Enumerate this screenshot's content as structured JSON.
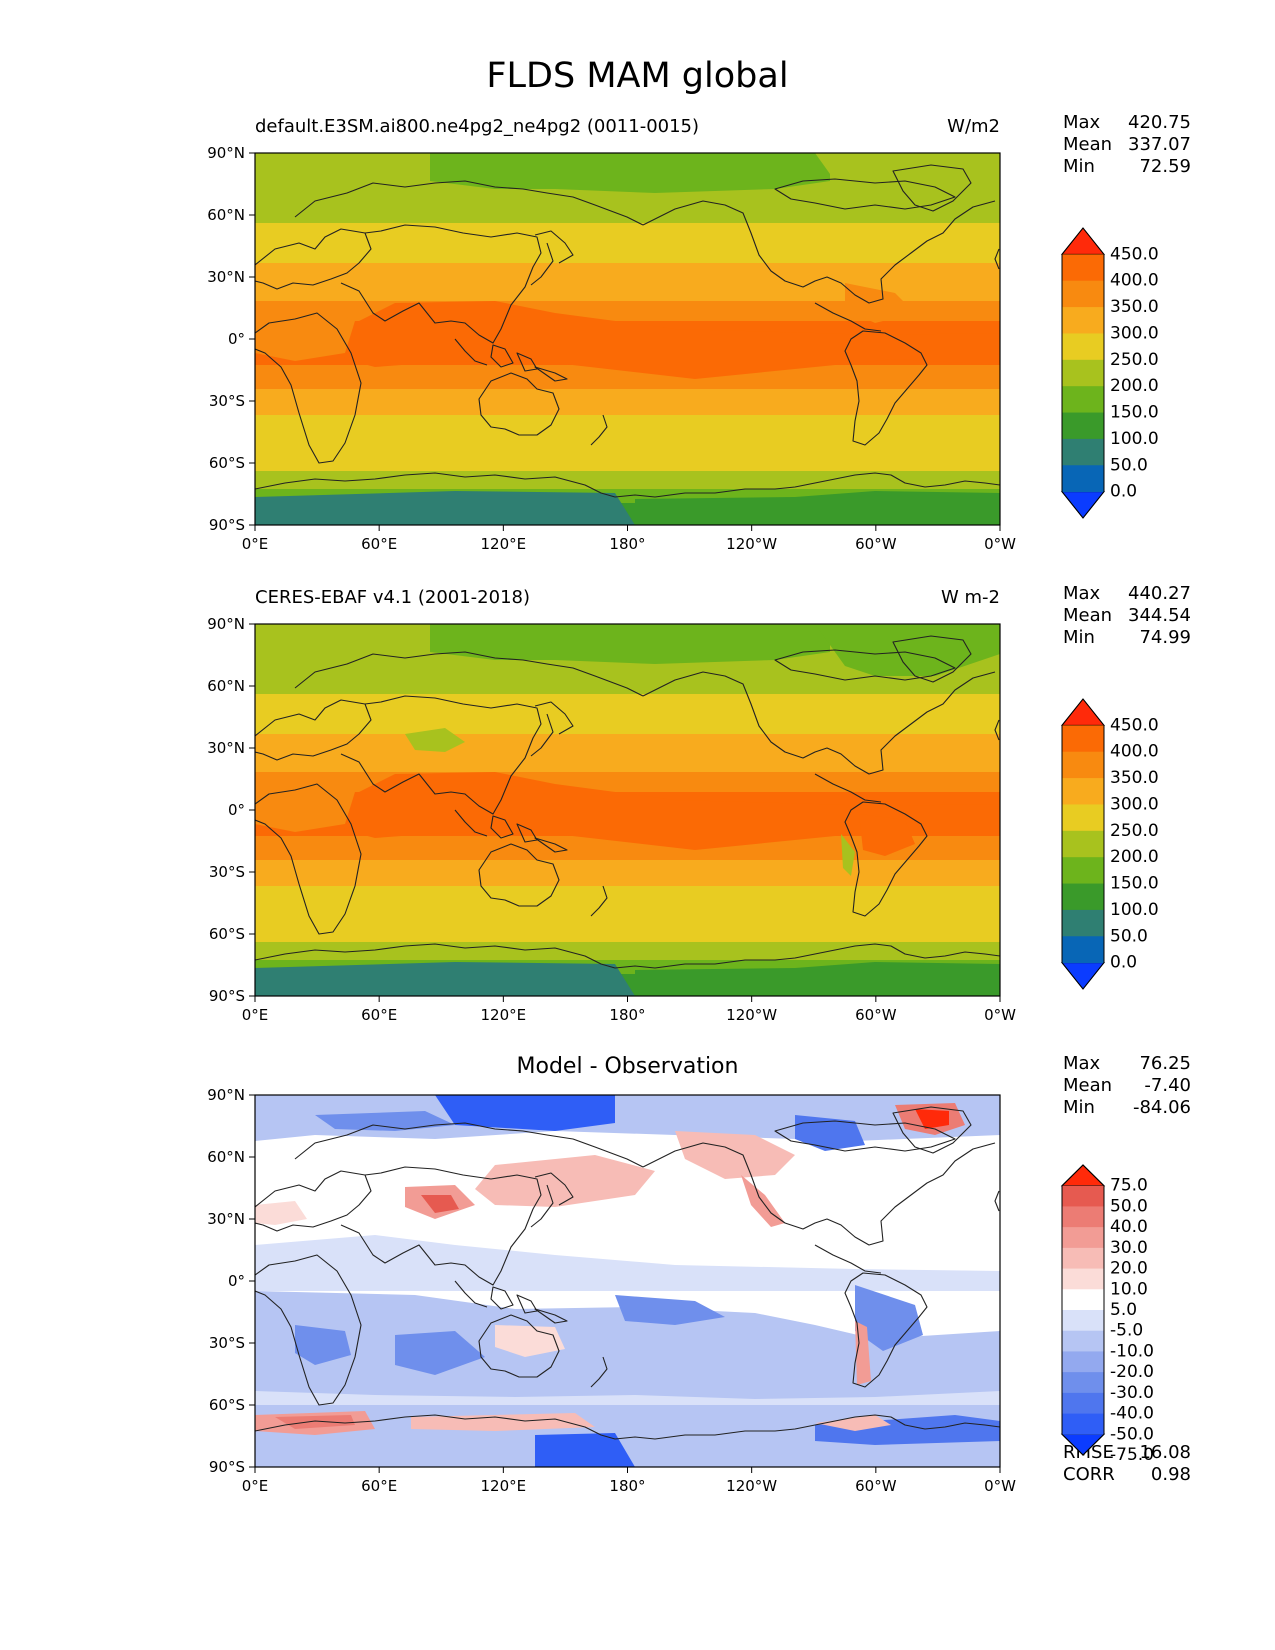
{
  "figure": {
    "title": "FLDS MAM global"
  },
  "axes": {
    "y_ticks": [
      "90°N",
      "60°N",
      "30°N",
      "0°",
      "30°S",
      "60°S",
      "90°S"
    ],
    "x_ticks": [
      "0°E",
      "60°E",
      "120°E",
      "180°",
      "120°W",
      "60°W",
      "0°W"
    ]
  },
  "colors": {
    "abs_levels": [
      "#0b3cff",
      "#0866b6",
      "#2f7f72",
      "#3a9a2a",
      "#6db41c",
      "#a8c21e",
      "#e8cc22",
      "#f8ab1e",
      "#f88a10",
      "#fb6a05",
      "#ff2a0a"
    ],
    "diff_levels": [
      "#0b3cff",
      "#2f5ef6",
      "#4f76ee",
      "#6f8fec",
      "#93a9ef",
      "#b6c5f3",
      "#d9e1f9",
      "#ffffff",
      "#fbdcd8",
      "#f7bcb6",
      "#f29c95",
      "#ec7c74",
      "#e65a50",
      "#ff2a0a"
    ],
    "coast": "#222222"
  },
  "panels": [
    {
      "title_left": "default.E3SM.ai800.ne4pg2_ne4pg2 (0011-0015)",
      "title_right": "W/m2",
      "stats": {
        "max_label": "Max",
        "max": "420.75",
        "mean_label": "Mean",
        "mean": "337.07",
        "min_label": "Min",
        "min": "72.59"
      },
      "colorbar": {
        "ticks": [
          "450.0",
          "400.0",
          "350.0",
          "300.0",
          "250.0",
          "200.0",
          "150.0",
          "100.0",
          "50.0",
          "0.0"
        ]
      }
    },
    {
      "title_left": "CERES-EBAF v4.1 (2001-2018)",
      "title_right": "W m-2",
      "stats": {
        "max_label": "Max",
        "max": "440.27",
        "mean_label": "Mean",
        "mean": "344.54",
        "min_label": "Min",
        "min": "74.99"
      },
      "colorbar": {
        "ticks": [
          "450.0",
          "400.0",
          "350.0",
          "300.0",
          "250.0",
          "200.0",
          "150.0",
          "100.0",
          "50.0",
          "0.0"
        ]
      }
    },
    {
      "title_center": "Model - Observation",
      "stats": {
        "max_label": "Max",
        "max": "76.25",
        "mean_label": "Mean",
        "mean": "-7.40",
        "min_label": "Min",
        "min": "-84.06"
      },
      "colorbar": {
        "ticks": [
          "75.0",
          "50.0",
          "40.0",
          "30.0",
          "20.0",
          "10.0",
          "5.0",
          "-5.0",
          "-10.0",
          "-20.0",
          "-30.0",
          "-40.0",
          "-50.0",
          "-75.0"
        ]
      },
      "metrics": {
        "rmse_label": "RMSE",
        "rmse": "16.08",
        "corr_label": "CORR",
        "corr": "0.98"
      }
    }
  ]
}
